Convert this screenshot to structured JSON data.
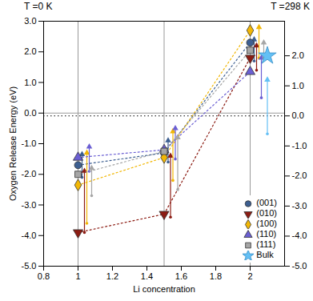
{
  "chart_data": {
    "type": "scatter",
    "x_label": "Li concentration",
    "y_label": "Oxygen Release Energy (eV)",
    "annotations": [
      "T =0 K",
      "T =298 K"
    ],
    "xlim": [
      0.8,
      2.2
    ],
    "xticks": [
      0.8,
      1,
      1.2,
      1.4,
      1.6,
      1.8,
      2
    ],
    "ylim": [
      -5,
      3
    ],
    "yticks": [
      {
        "value": -5,
        "label": "-5.0"
      },
      {
        "value": -4,
        "label": "-4.0"
      },
      {
        "value": -3,
        "label": "-3.0"
      },
      {
        "value": -2,
        "label": "-2.0"
      },
      {
        "value": -1,
        "label": "-1.0"
      },
      {
        "value": 0,
        "label": "0.0"
      },
      {
        "value": 1,
        "label": "1.0"
      },
      {
        "value": 2,
        "label": "2.0"
      },
      {
        "value": 3,
        "label": "3.0"
      }
    ],
    "y2lim": [
      -5,
      3.15
    ],
    "y2ticks": [
      {
        "value": -5,
        "label": "-5.0"
      },
      {
        "value": -4,
        "label": "-4.0"
      },
      {
        "value": -3,
        "label": "-3.0"
      },
      {
        "value": -2,
        "label": "-2.0"
      },
      {
        "value": -1,
        "label": "-1.0"
      },
      {
        "value": 0,
        "label": "0.0"
      },
      {
        "value": 1,
        "label": "1.0"
      },
      {
        "value": 2,
        "label": "2.0"
      }
    ],
    "reference_lines": {
      "x": [
        1,
        1.5,
        2
      ],
      "y": [
        0
      ],
      "y2": [
        0
      ]
    },
    "legend": "bottom-right",
    "series": [
      {
        "name": "(001)",
        "color": "#3d5f91",
        "marker": "circle",
        "line_style": "dotted",
        "x": [
          1,
          1.5,
          2
        ],
        "values": [
          -1.7,
          -1.3,
          2.3
        ],
        "error_low": [
          -2.1,
          -1.6,
          1.7
        ],
        "error_high": [
          -1.35,
          -0.9,
          2.4
        ]
      },
      {
        "name": "(010)",
        "color": "#8c1c13",
        "marker": "triangle-down",
        "line_style": "dotted",
        "x": [
          1,
          1.5,
          2
        ],
        "values": [
          -3.9,
          -3.3,
          1.8
        ],
        "error_low": [
          -3.9,
          -3.4,
          1.4
        ],
        "error_high": [
          -1.9,
          -1.4,
          2.2
        ]
      },
      {
        "name": "(100)",
        "color": "#f2b705",
        "marker": "diamond",
        "line_style": "dotted",
        "x": [
          1,
          1.5,
          2
        ],
        "values": [
          -2.35,
          -1.45,
          2.7
        ],
        "error_low": [
          -3.6,
          -2.2,
          1.8
        ],
        "error_high": [
          -1.3,
          -0.6,
          2.8
        ]
      },
      {
        "name": "(110)",
        "color": "#6b5fd3",
        "marker": "triangle",
        "line_style": "dotted",
        "x": [
          1,
          1.5,
          2
        ],
        "values": [
          -1.45,
          -1.2,
          1.35
        ],
        "error_low": [
          -1.9,
          -1.5,
          0.5
        ],
        "error_high": [
          -1.1,
          -0.5,
          1.8
        ]
      },
      {
        "name": "(111)",
        "color": "#a6a6a6",
        "marker": "square",
        "line_style": "dotted",
        "x": [
          1,
          1.5,
          2
        ],
        "values": [
          -2.0,
          -1.25,
          2.05
        ],
        "error_low": [
          -2.7,
          -2.5,
          1.8
        ],
        "error_high": [
          -1.8,
          -0.8,
          2.3
        ]
      },
      {
        "name": "Bulk",
        "color": "#64c0f5",
        "marker": "star",
        "axis": "y2",
        "x": [
          2.1
        ],
        "values": [
          2.0
        ],
        "error_low": [
          -0.6
        ],
        "error_high": [
          1.2
        ]
      }
    ]
  }
}
